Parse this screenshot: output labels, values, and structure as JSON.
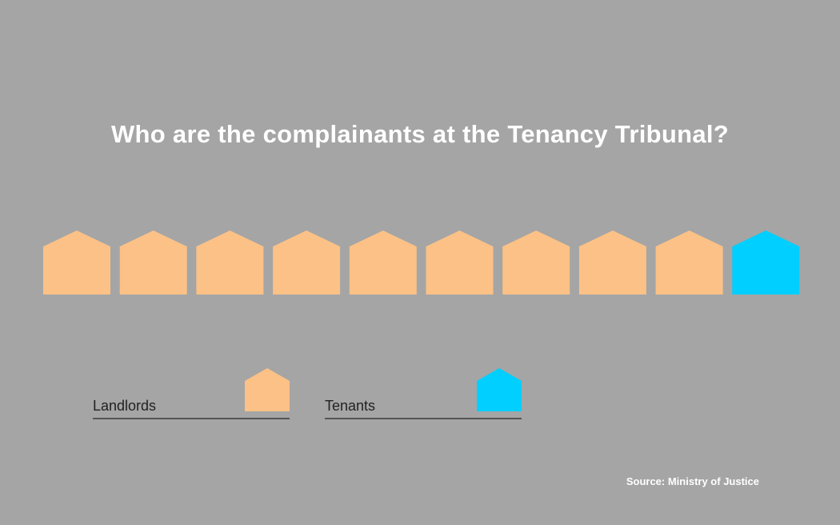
{
  "chart_data": {
    "type": "pictogram",
    "title": "Who are the complainants at the Tenancy Tribunal?",
    "categories": [
      "Landlords",
      "Tenants"
    ],
    "values": [
      9,
      1
    ],
    "total_icons": 10,
    "colors": {
      "Landlords": "#fbc186",
      "Tenants": "#00cfff"
    },
    "legend": [
      {
        "label": "Landlords",
        "color": "#fbc186"
      },
      {
        "label": "Tenants",
        "color": "#00cfff"
      }
    ],
    "source": "Source: Ministry of Justice"
  }
}
